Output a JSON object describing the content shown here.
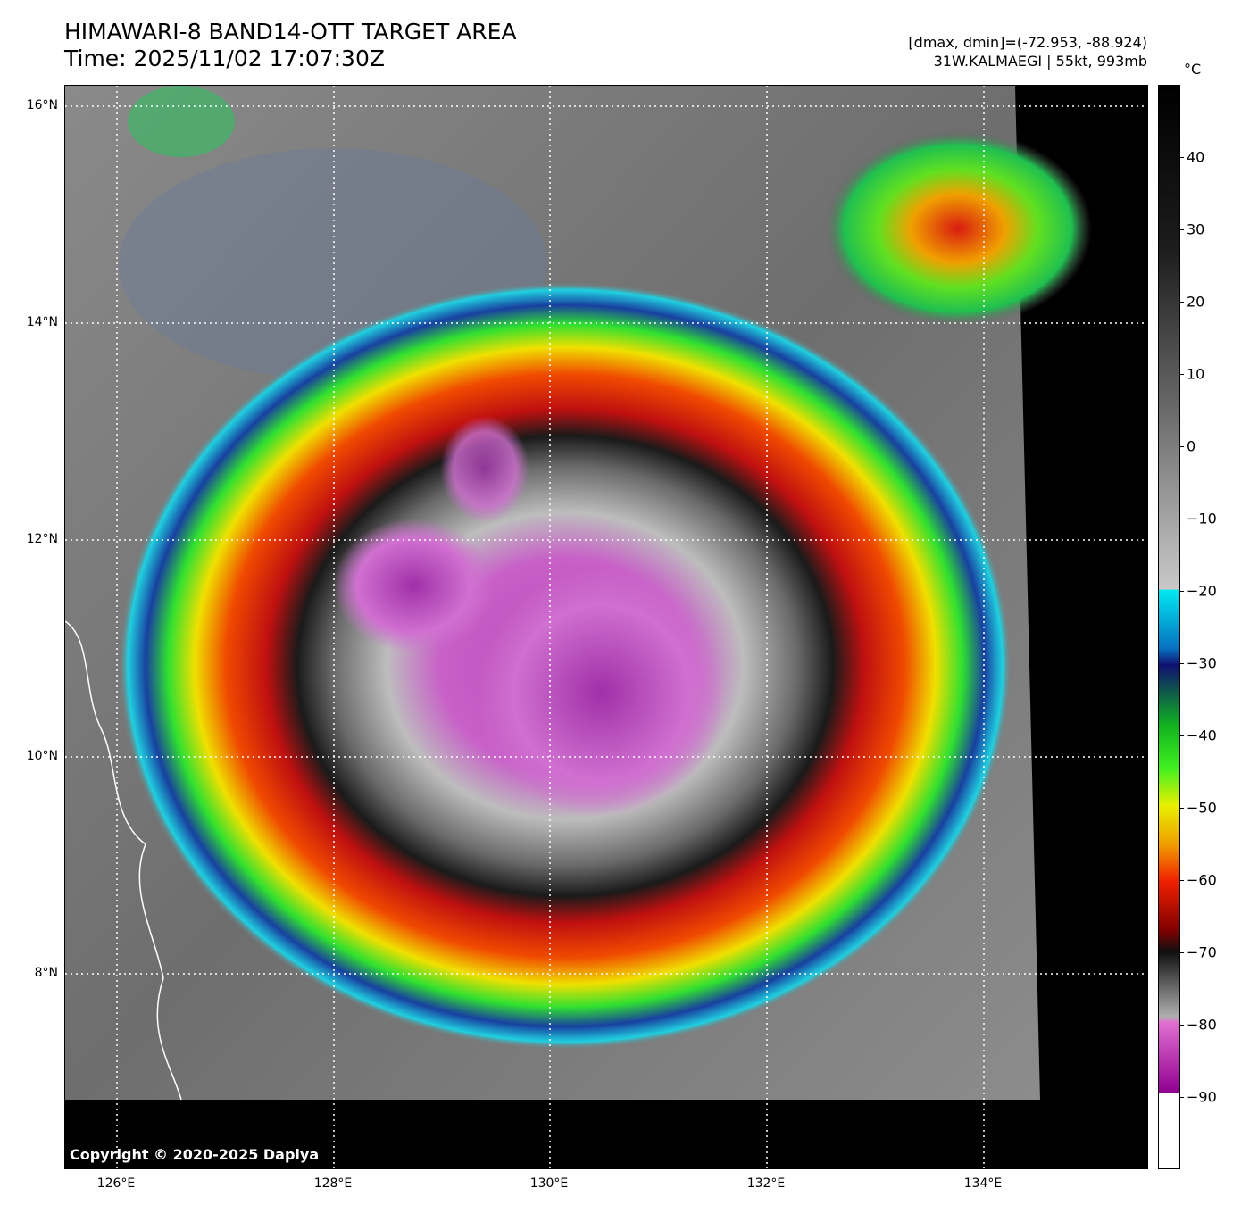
{
  "header": {
    "title_line1": "HIMAWARI-8 BAND14-OTT TARGET AREA",
    "title_line2": "Time: 2025/11/02 17:07:30Z",
    "stats_line": "[dmax, dmin]=(-72.953, -88.924)",
    "storm_line": "31W.KALMAEGI | 55kt, 993mb"
  },
  "map": {
    "latitude_labels": [
      "16°N",
      "14°N",
      "12°N",
      "10°N",
      "8°N"
    ],
    "longitude_labels": [
      "126°E",
      "128°E",
      "130°E",
      "132°E",
      "134°E"
    ],
    "copyright": "Copyright © 2020-2025 Dapiya"
  },
  "colorbar": {
    "unit": "°C",
    "ticks": [
      "40",
      "30",
      "20",
      "10",
      "0",
      "−10",
      "−20",
      "−30",
      "−40",
      "−50",
      "−60",
      "−70",
      "−80",
      "−90"
    ],
    "tick_values": [
      40,
      30,
      20,
      10,
      0,
      -10,
      -20,
      -30,
      -40,
      -50,
      -60,
      -70,
      -80,
      -90
    ],
    "range": [
      -100,
      50
    ]
  }
}
